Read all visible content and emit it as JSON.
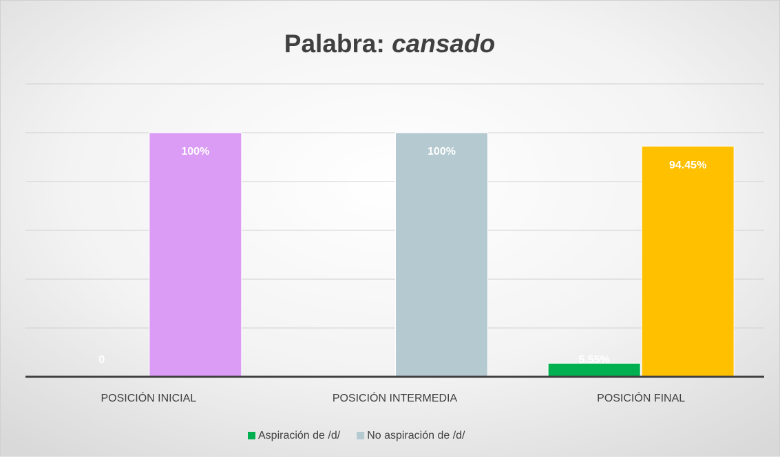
{
  "chart_data": {
    "type": "bar",
    "title": [
      "Palabra:",
      "cansado"
    ],
    "categories": [
      "POSICIÓN INICIAL",
      "POSICIÓN INTERMEDIA",
      "POSICIÓN FINAL"
    ],
    "series": [
      {
        "name": "Aspiración de /d/",
        "color": "#00b050",
        "colors": [
          "#00b050",
          "#00b050",
          "#00b050"
        ],
        "values": [
          0,
          null,
          5.55
        ],
        "value_labels": [
          "0",
          null,
          "5.55%"
        ]
      },
      {
        "name": "No aspiración de /d/",
        "color": "#b4c9d0",
        "colors": [
          "#da9cf5",
          "#b4c9d0",
          "#ffc000"
        ],
        "values": [
          100,
          100,
          94.45
        ],
        "value_labels": [
          "100%",
          "100%",
          "94.45%"
        ]
      }
    ],
    "ylim": [
      0,
      120
    ],
    "yticks": [
      0,
      20,
      40,
      60,
      80,
      100,
      120
    ],
    "grid": true,
    "legend": "bottom"
  }
}
